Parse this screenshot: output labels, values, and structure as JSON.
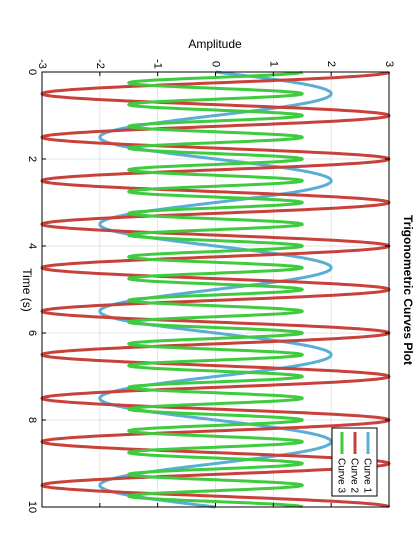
{
  "chart_data": {
    "type": "line",
    "title": "Trigonometric Curves Plot",
    "xlabel": "Time (s)",
    "ylabel": "Amplitude",
    "xlim": [
      0,
      10
    ],
    "ylim": [
      -3,
      3
    ],
    "x_ticks": [
      "0",
      "2",
      "4",
      "6",
      "8",
      "10"
    ],
    "y_ticks": [
      "-3",
      "-2",
      "-1",
      "0",
      "1",
      "2",
      "3"
    ],
    "grid": true,
    "orientation": "rotated 90° clockwise (time axis runs top-to-bottom)",
    "legend_position": "bottom-right",
    "series": [
      {
        "name": "Curve 1",
        "color": "#5aaed6",
        "formula": "2*sin(pi*x)"
      },
      {
        "name": "Curve 2",
        "color": "#c8413b",
        "formula": "3*cos(2*pi*x)"
      },
      {
        "name": "Curve 3",
        "color": "#3ecb3e",
        "formula": "1.5*cos(4*pi*x)"
      }
    ]
  }
}
